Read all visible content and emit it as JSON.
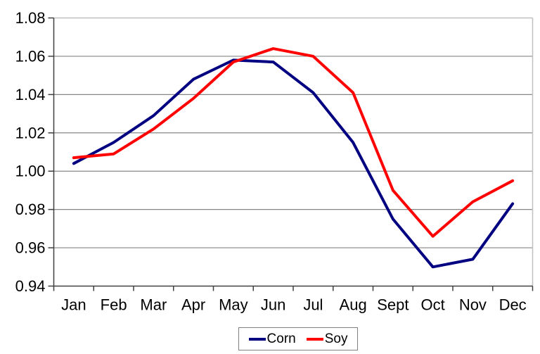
{
  "chart_data": {
    "type": "line",
    "title": "",
    "xlabel": "",
    "ylabel": "",
    "categories": [
      "Jan",
      "Feb",
      "Mar",
      "Apr",
      "May",
      "Jun",
      "Jul",
      "Aug",
      "Sept",
      "Oct",
      "Nov",
      "Dec"
    ],
    "series": [
      {
        "name": "Corn",
        "color": "#000080",
        "values": [
          1.004,
          1.015,
          1.029,
          1.048,
          1.058,
          1.057,
          1.041,
          1.015,
          0.975,
          0.95,
          0.954,
          0.983
        ]
      },
      {
        "name": "Soy",
        "color": "#FF0000",
        "values": [
          1.007,
          1.009,
          1.022,
          1.038,
          1.057,
          1.064,
          1.06,
          1.041,
          0.99,
          0.966,
          0.984,
          0.995
        ]
      }
    ],
    "ylim": [
      0.94,
      1.08
    ],
    "ytick_step": 0.02,
    "y_tick_labels": [
      "0.94",
      "0.96",
      "0.98",
      "1.00",
      "1.02",
      "1.04",
      "1.06",
      "1.08"
    ],
    "grid": "horizontal",
    "legend_position": "bottom-center",
    "axis_color": "#404040",
    "grid_color": "#868686",
    "plot_border_color": "#c0c0c0",
    "text_color": "#000000",
    "background": "#ffffff"
  }
}
